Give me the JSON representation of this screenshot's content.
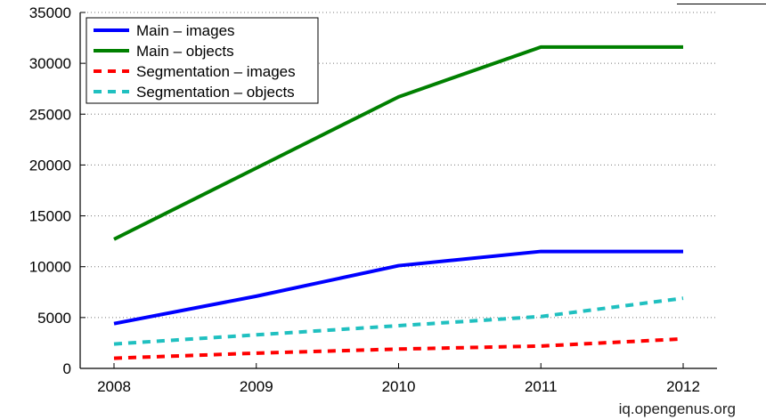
{
  "chart_data": {
    "type": "line",
    "title": "",
    "xlabel": "",
    "ylabel": "",
    "x": [
      "2008",
      "2009",
      "2010",
      "2011",
      "2012"
    ],
    "ylim": [
      0,
      35000
    ],
    "yticks": [
      "0",
      "5000",
      "10000",
      "15000",
      "20000",
      "25000",
      "30000",
      "35000"
    ],
    "grid": "horizontal dotted",
    "legend_position": "top-left",
    "series": [
      {
        "name": "Main – images",
        "values": [
          4400,
          7100,
          10100,
          11500,
          11500
        ],
        "color": "#0000ff",
        "dashed": false
      },
      {
        "name": "Main – objects",
        "values": [
          12700,
          19700,
          26700,
          31600,
          31600
        ],
        "color": "#008000",
        "dashed": false
      },
      {
        "name": "Segmentation – images",
        "values": [
          1000,
          1500,
          1900,
          2200,
          2900
        ],
        "color": "#ff0000",
        "dashed": true
      },
      {
        "name": "Segmentation – objects",
        "values": [
          2400,
          3300,
          4200,
          5100,
          6900
        ],
        "color": "#20c0c0",
        "dashed": true
      }
    ]
  },
  "watermark": "iq.opengenus.org"
}
